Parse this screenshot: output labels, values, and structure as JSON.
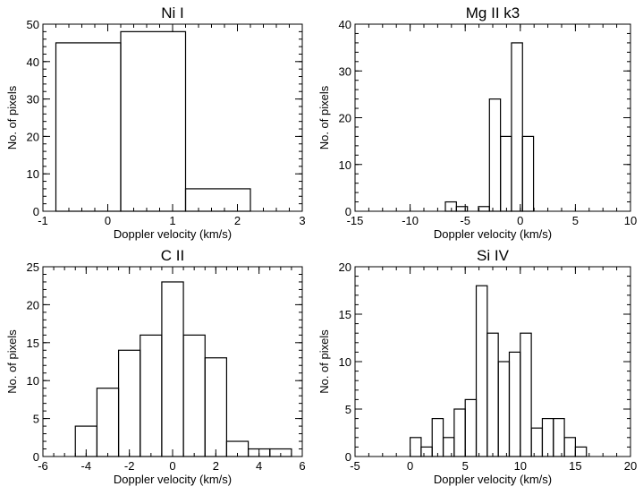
{
  "chart_data": [
    {
      "type": "histogram",
      "title": "Ni I",
      "xlabel": "Doppler velocity (km/s)",
      "ylabel": "No. of pixels",
      "xlim": [
        -1,
        3
      ],
      "ylim": [
        0,
        50
      ],
      "xticks": [
        -1,
        0,
        1,
        2,
        3
      ],
      "yticks": [
        0,
        10,
        20,
        30,
        40,
        50
      ],
      "bins": [
        -0.8,
        0.2,
        1.2,
        2.2
      ],
      "counts": [
        45,
        48,
        6
      ]
    },
    {
      "type": "histogram",
      "title": "Mg II k3",
      "xlabel": "Doppler velocity (km/s)",
      "ylabel": "No. of pixels",
      "xlim": [
        -15,
        10
      ],
      "ylim": [
        0,
        40
      ],
      "xticks": [
        -15,
        -10,
        -5,
        0,
        5,
        10
      ],
      "yticks": [
        0,
        10,
        20,
        30,
        40
      ],
      "bins": [
        -6.8,
        -5.8,
        -4.8,
        -3.8,
        -2.8,
        -1.8,
        -0.8,
        0.2,
        1.2
      ],
      "counts": [
        2,
        1,
        0,
        1,
        24,
        16,
        36,
        16
      ]
    },
    {
      "type": "histogram",
      "title": "C II",
      "xlabel": "Doppler velocity (km/s)",
      "ylabel": "No. of pixels",
      "xlim": [
        -6,
        6
      ],
      "ylim": [
        0,
        25
      ],
      "xticks": [
        -6,
        -4,
        -2,
        0,
        2,
        4,
        6
      ],
      "yticks": [
        0,
        5,
        10,
        15,
        20,
        25
      ],
      "bins": [
        -4.5,
        -3.5,
        -2.5,
        -1.5,
        -0.5,
        0.5,
        1.5,
        2.5,
        3.5,
        4.5,
        5.5
      ],
      "counts": [
        4,
        9,
        14,
        16,
        23,
        16,
        13,
        2,
        1,
        1
      ]
    },
    {
      "type": "histogram",
      "title": "Si IV",
      "xlabel": "Doppler velocity (km/s)",
      "ylabel": "No. of pixels",
      "xlim": [
        -5,
        20
      ],
      "ylim": [
        0,
        20
      ],
      "xticks": [
        -5,
        0,
        5,
        10,
        15,
        20
      ],
      "yticks": [
        0,
        5,
        10,
        15,
        20
      ],
      "bins": [
        0,
        1,
        2,
        3,
        4,
        5,
        6,
        7,
        8,
        9,
        10,
        11,
        12,
        13,
        14,
        15,
        16
      ],
      "counts": [
        2,
        1,
        4,
        2,
        5,
        6,
        18,
        13,
        10,
        11,
        13,
        3,
        4,
        4,
        2,
        1
      ]
    }
  ]
}
